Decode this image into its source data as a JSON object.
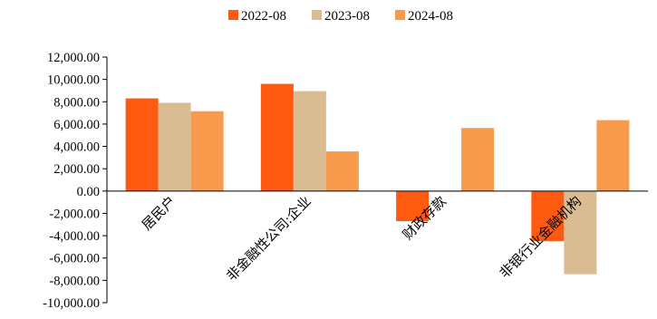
{
  "chart_data": {
    "type": "bar",
    "title": "",
    "xlabel": "",
    "ylabel": "",
    "ylim": [
      -10000,
      12000
    ],
    "yticks": [
      "12,000.00",
      "10,000.00",
      "8,000.00",
      "6,000.00",
      "4,000.00",
      "2,000.00",
      "0.00",
      "-2,000.00",
      "-4,000.00",
      "-6,000.00",
      "-8,000.00",
      "-10,000.00"
    ],
    "ytick_values": [
      12000,
      10000,
      8000,
      6000,
      4000,
      2000,
      0,
      -2000,
      -4000,
      -6000,
      -8000,
      -10000
    ],
    "categories": [
      "居民户",
      "非金融性公司:企业",
      "财政存款",
      "非银行业金融机构"
    ],
    "legend_position": "top-center",
    "series": [
      {
        "name": "2022-08",
        "color": "#FF5A0F",
        "values": [
          8300,
          9600,
          -2700,
          -4500
        ]
      },
      {
        "name": "2023-08",
        "color": "#D9BC91",
        "values": [
          7900,
          8950,
          -60,
          -7450
        ]
      },
      {
        "name": "2024-08",
        "color": "#F79A4C",
        "values": [
          7150,
          3550,
          5650,
          6350
        ]
      }
    ]
  }
}
